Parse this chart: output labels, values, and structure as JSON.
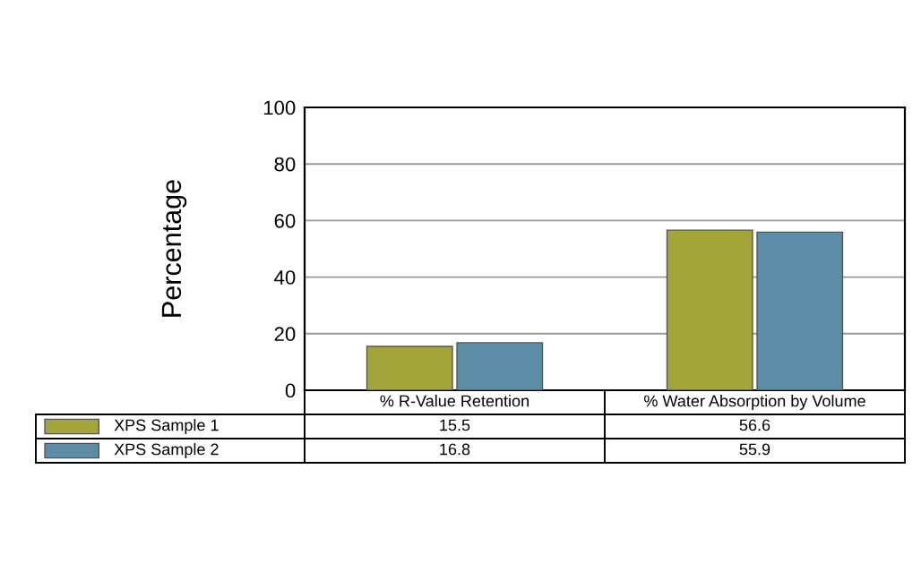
{
  "chart_data": {
    "type": "bar",
    "ylabel": "Percentage",
    "categories": [
      "% R-Value Retention",
      "% Water Absorption by Volume"
    ],
    "series": [
      {
        "name": "XPS Sample 1",
        "color": "#a3a43a",
        "values": [
          15.5,
          56.6
        ]
      },
      {
        "name": "XPS Sample 2",
        "color": "#5d8ca6",
        "values": [
          16.8,
          55.9
        ]
      }
    ],
    "ylim": [
      0,
      100
    ],
    "yticks": [
      0,
      20,
      40,
      60,
      80,
      100
    ],
    "grid": "y",
    "legend": "bottom",
    "data_labels": true
  }
}
